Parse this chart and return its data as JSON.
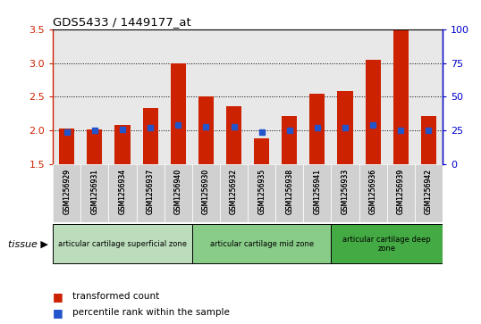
{
  "title": "GDS5433 / 1449177_at",
  "samples": [
    "GSM1256929",
    "GSM1256931",
    "GSM1256934",
    "GSM1256937",
    "GSM1256940",
    "GSM1256930",
    "GSM1256932",
    "GSM1256935",
    "GSM1256938",
    "GSM1256941",
    "GSM1256933",
    "GSM1256936",
    "GSM1256939",
    "GSM1256942"
  ],
  "transformed_count": [
    2.03,
    2.01,
    2.08,
    2.33,
    2.99,
    2.5,
    2.36,
    1.89,
    2.22,
    2.55,
    2.58,
    3.04,
    3.48,
    2.22
  ],
  "percentile_rank": [
    24,
    25,
    26,
    27,
    29,
    28,
    28,
    24,
    25,
    27,
    27,
    29,
    25,
    25
  ],
  "ylim_left": [
    1.5,
    3.5
  ],
  "ylim_right": [
    0,
    100
  ],
  "yticks_left": [
    1.5,
    2.0,
    2.5,
    3.0,
    3.5
  ],
  "yticks_right": [
    0,
    25,
    50,
    75,
    100
  ],
  "bar_color": "#cc2200",
  "dot_color": "#2255cc",
  "plot_bg": "#e8e8e8",
  "label_bg": "#d0d0d0",
  "tissue_groups": [
    {
      "label": "articular cartilage superficial zone",
      "start": 0,
      "end": 5,
      "color": "#bbddbb"
    },
    {
      "label": "articular cartilage mid zone",
      "start": 5,
      "end": 10,
      "color": "#88cc88"
    },
    {
      "label": "articular cartilage deep\nzone",
      "start": 10,
      "end": 14,
      "color": "#44aa44"
    }
  ],
  "tissue_label": "tissue",
  "legend_items": [
    {
      "label": "transformed count",
      "color": "#cc2200"
    },
    {
      "label": "percentile rank within the sample",
      "color": "#2255cc"
    }
  ]
}
